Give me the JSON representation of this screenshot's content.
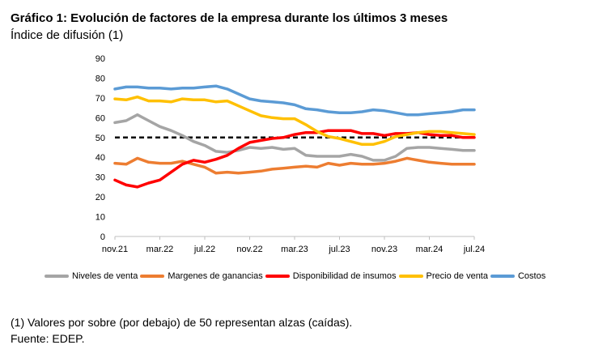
{
  "title": "Gráfico 1: Evolución de factores de la empresa durante los últimos 3 meses",
  "subtitle": "Índice de difusión (1)",
  "footnote": "(1) Valores por sobre (por debajo) de 50 representan alzas (caídas).",
  "source": "Fuente: EDEP.",
  "chart_data": {
    "type": "line",
    "x": [
      "nov.21",
      "dic.21",
      "ene.22",
      "feb.22",
      "mar.22",
      "abr.22",
      "may.22",
      "jun.22",
      "jul.22",
      "ago.22",
      "sep.22",
      "oct.22",
      "nov.22",
      "dic.22",
      "ene.23",
      "feb.23",
      "mar.23",
      "abr.23",
      "may.23",
      "jun.23",
      "jul.23",
      "ago.23",
      "sep.23",
      "oct.23",
      "nov.23",
      "dic.23",
      "ene.24",
      "feb.24",
      "mar.24",
      "abr.24",
      "may.24",
      "jun.24",
      "jul.24"
    ],
    "x_tick_labels": [
      "nov.21",
      "mar.22",
      "jul.22",
      "nov.22",
      "mar.23",
      "jul.23",
      "nov.23",
      "mar.24",
      "jul.24"
    ],
    "ylim": [
      0,
      90
    ],
    "yticks": [
      0,
      10,
      20,
      30,
      40,
      50,
      60,
      70,
      80,
      90
    ],
    "reference_line": {
      "y": 50,
      "style": "dashed",
      "color": "#000000"
    },
    "legend_position": "bottom",
    "series": [
      {
        "name": "Niveles de venta",
        "color": "#a5a5a5",
        "values": [
          57.5,
          58.5,
          61.5,
          58.5,
          55.5,
          53.5,
          51,
          48,
          46,
          43,
          42.5,
          43.5,
          45,
          44.5,
          45,
          44,
          44.5,
          41,
          40.5,
          40.5,
          40.5,
          41.5,
          40.5,
          38.5,
          38.5,
          40.5,
          44.5,
          45,
          45,
          44.5,
          44,
          43.5,
          43.5
        ]
      },
      {
        "name": "Margenes de ganancias",
        "color": "#ed7d31",
        "values": [
          37,
          36.5,
          39.5,
          37.5,
          37,
          37,
          38,
          36.5,
          35,
          32,
          32.5,
          32,
          32.5,
          33,
          34,
          34.5,
          35,
          35.5,
          35,
          37,
          36,
          37,
          36.5,
          36.5,
          37,
          38,
          39.5,
          38.5,
          37.5,
          37,
          36.5,
          36.5,
          36.5
        ]
      },
      {
        "name": "Disponibilidad de insumos",
        "color": "#ff0000",
        "values": [
          28.5,
          26,
          25,
          27,
          28.5,
          32.5,
          36.5,
          38.5,
          37.5,
          39,
          41,
          44.5,
          47.5,
          48.5,
          49.5,
          50,
          51.5,
          52.5,
          52.5,
          53.5,
          53.5,
          53.5,
          52,
          52,
          51,
          52,
          52,
          52.5,
          51.5,
          51,
          51,
          50,
          50
        ]
      },
      {
        "name": "Precio de venta",
        "color": "#ffc000",
        "values": [
          69.5,
          69,
          70.5,
          68.5,
          68.5,
          68,
          69.5,
          69,
          69,
          68,
          68.5,
          66,
          63.5,
          61,
          60,
          59.5,
          59.5,
          56.5,
          53,
          50.5,
          49.5,
          48,
          46.5,
          46.5,
          48,
          50.5,
          51.5,
          52.5,
          53,
          53,
          52.5,
          52,
          51.5
        ]
      },
      {
        "name": "Costos",
        "color": "#5b9bd5",
        "values": [
          74.5,
          75.5,
          75.5,
          75,
          75,
          74.5,
          75,
          75,
          75.5,
          76,
          74.5,
          72,
          69.5,
          68.5,
          68,
          67.5,
          66.5,
          64.5,
          64,
          63,
          62.5,
          62.5,
          63,
          64,
          63.5,
          62.5,
          61.5,
          61.5,
          62,
          62.5,
          63,
          64,
          64
        ]
      }
    ]
  }
}
